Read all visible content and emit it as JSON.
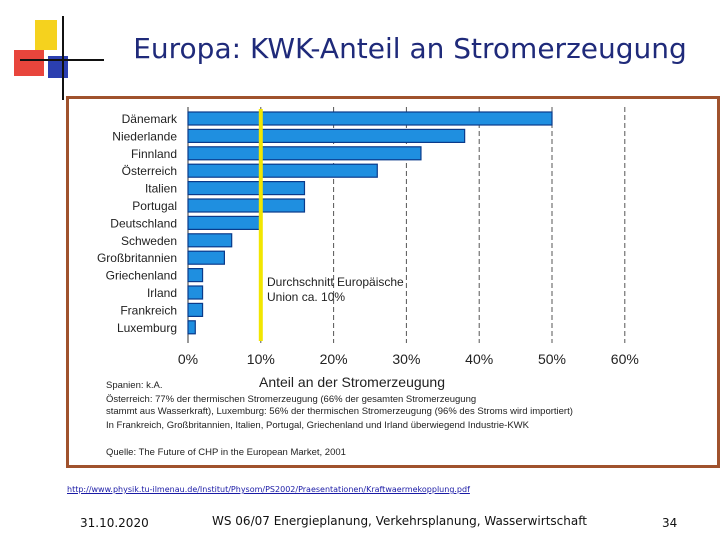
{
  "slide": {
    "title": "Europa: KWK-Anteil an Stromerzeugung",
    "source_url": "http://www.physik.tu-ilmenau.de/Institut/Physom/PS2002/Praesentationen/Kraftwaermekopplung.pdf",
    "footer_date": "31.10.2020",
    "footer_center": "WS 06/07 Energieplanung, Verkehrsplanung, Wasserwirtschaft",
    "page_number": "34"
  },
  "colors": {
    "bar": "#1f8fe0",
    "bar_edge": "#0a3a8a",
    "average_line": "#f2e600",
    "deco_yellow": "#f5d21e",
    "deco_red": "#e8453c",
    "deco_blue": "#2b3fb0",
    "frame": "#a0522d"
  },
  "chart_data": {
    "type": "bar",
    "orientation": "horizontal",
    "categories": [
      "Dänemark",
      "Niederlande",
      "Finnland",
      "Österreich",
      "Italien",
      "Portugal",
      "Deutschland",
      "Schweden",
      "Großbritannien",
      "Griechenland",
      "Irland",
      "Frankreich",
      "Luxemburg"
    ],
    "values": [
      50,
      38,
      32,
      26,
      16,
      16,
      10,
      6,
      5,
      2,
      2,
      2,
      1
    ],
    "xlim": [
      0,
      60
    ],
    "xticks": [
      "0%",
      "10%",
      "20%",
      "30%",
      "40%",
      "50%",
      "60%"
    ],
    "xlabel": "Anteil an der Stromerzeugung",
    "grid": "vertical dashed",
    "average_line": {
      "value": 10,
      "label_line1": "Durchschnitt Europäische",
      "label_line2": "Union ca. 10%"
    },
    "notes": [
      "Spanien: k.A.",
      "Österreich: 77% der thermischen Stromerzeugung (66% der gesamten Stromerzeugung",
      "stammt aus Wasserkraft), Luxemburg: 56% der thermischen Stromerzeugung (96% des Stroms wird importiert)",
      "In Frankreich, Großbritannien, Italien, Portugal, Griechenland und Irland überwiegend Industrie-KWK"
    ],
    "source_note": "Quelle: The Future of CHP in the European Market, 2001"
  }
}
